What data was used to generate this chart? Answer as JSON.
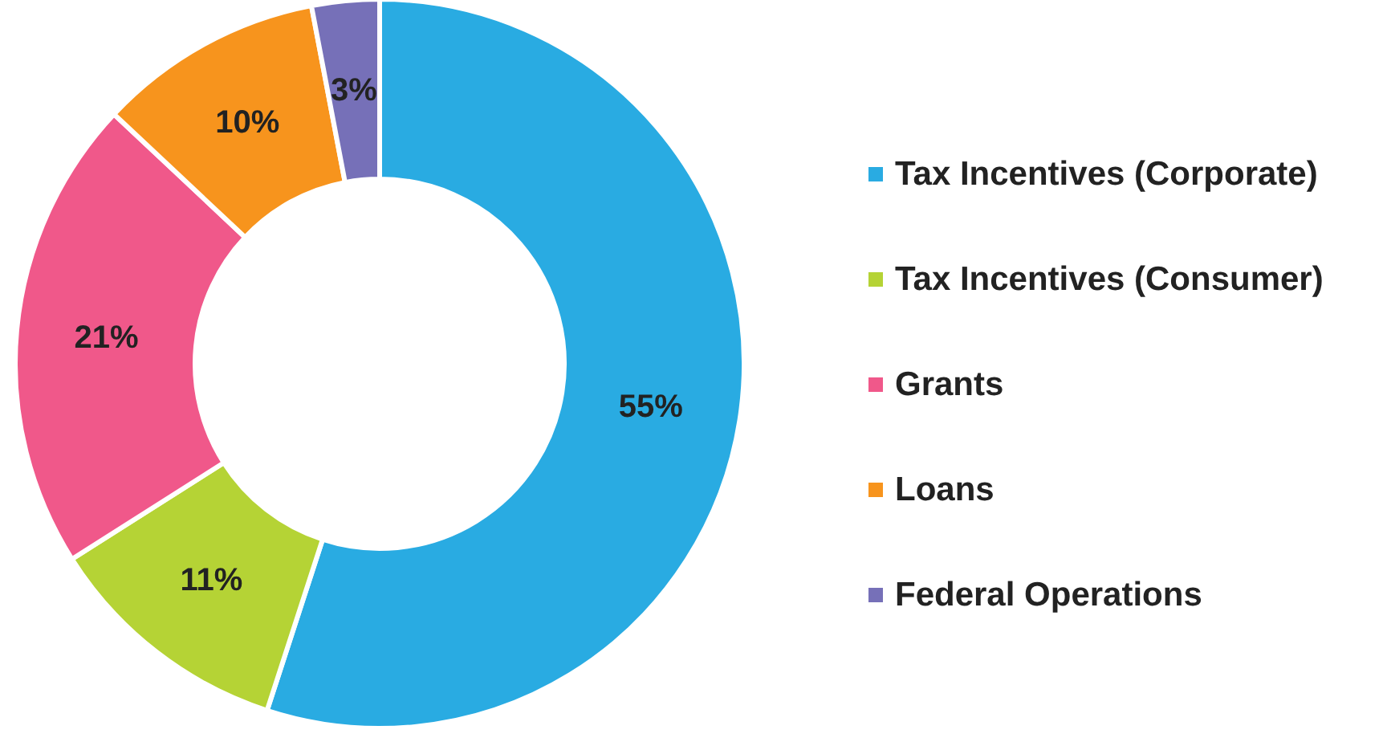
{
  "chart_data": {
    "type": "donut",
    "categories": [
      "Tax Incentives (Corporate)",
      "Tax Incentives (Consumer)",
      "Grants",
      "Loans",
      "Federal Operations"
    ],
    "values": [
      55,
      11,
      21,
      10,
      3
    ],
    "colors": [
      "#29abe2",
      "#b5d335",
      "#f0588a",
      "#f7941d",
      "#7670b8"
    ],
    "value_labels": [
      "55%",
      "11%",
      "21%",
      "10%",
      "3%"
    ],
    "legend": "right"
  }
}
